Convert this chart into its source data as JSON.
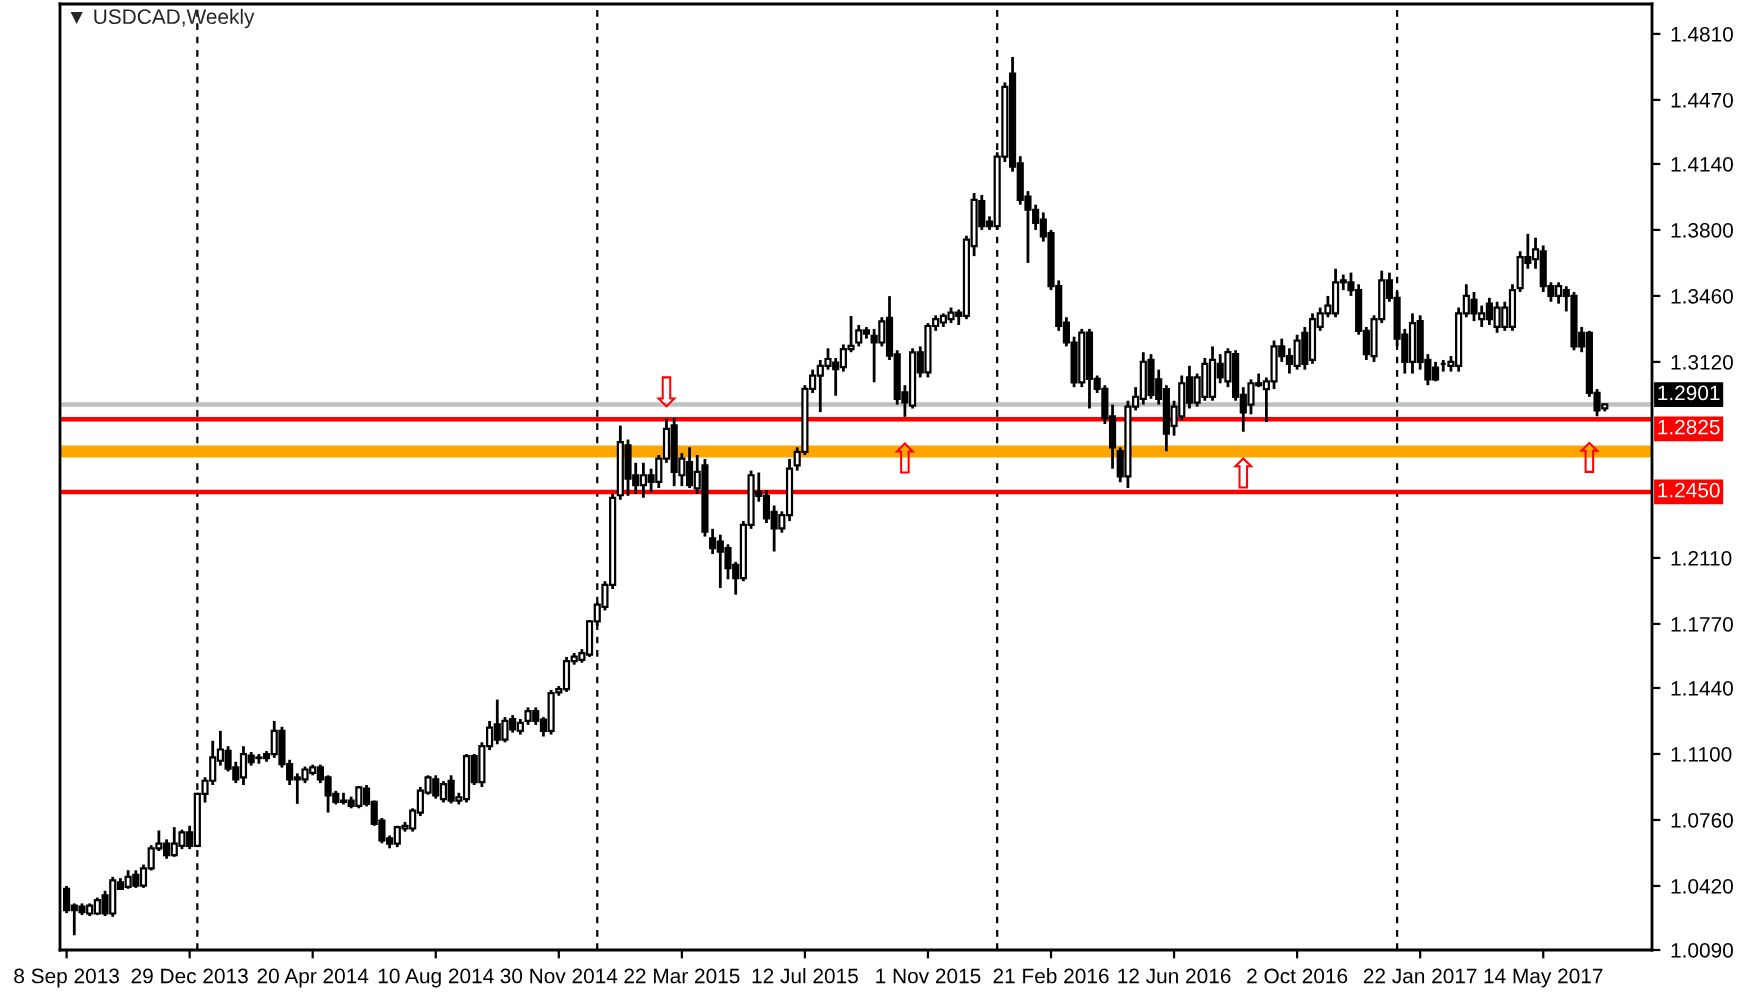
{
  "chart_data": {
    "type": "candlestick",
    "title": "▼ USDCAD,Weekly",
    "x": [
      "2013-09-08",
      "2013-09-15",
      "2013-09-22",
      "2013-09-29",
      "2013-10-06",
      "2013-10-13",
      "2013-10-20",
      "2013-10-27",
      "2013-11-03",
      "2013-11-10",
      "2013-11-17",
      "2013-11-24",
      "2013-12-01",
      "2013-12-08",
      "2013-12-15",
      "2013-12-22",
      "2013-12-29",
      "2014-01-05",
      "2014-01-12",
      "2014-01-19",
      "2014-01-26",
      "2014-02-02",
      "2014-02-09",
      "2014-02-16",
      "2014-02-23",
      "2014-03-02",
      "2014-03-09",
      "2014-03-16",
      "2014-03-23",
      "2014-03-30",
      "2014-04-06",
      "2014-04-13",
      "2014-04-20",
      "2014-04-27",
      "2014-05-04",
      "2014-05-11",
      "2014-05-18",
      "2014-05-25",
      "2014-06-01",
      "2014-06-08",
      "2014-06-15",
      "2014-06-22",
      "2014-06-29",
      "2014-07-06",
      "2014-07-13",
      "2014-07-20",
      "2014-07-27",
      "2014-08-03",
      "2014-08-10",
      "2014-08-17",
      "2014-08-24",
      "2014-08-31",
      "2014-09-07",
      "2014-09-14",
      "2014-09-21",
      "2014-09-28",
      "2014-10-05",
      "2014-10-12",
      "2014-10-19",
      "2014-10-26",
      "2014-11-02",
      "2014-11-09",
      "2014-11-16",
      "2014-11-23",
      "2014-11-30",
      "2014-12-07",
      "2014-12-14",
      "2014-12-21",
      "2014-12-28",
      "2015-01-04",
      "2015-01-11",
      "2015-01-18",
      "2015-01-25",
      "2015-02-01",
      "2015-02-08",
      "2015-02-15",
      "2015-02-22",
      "2015-03-01",
      "2015-03-08",
      "2015-03-15",
      "2015-03-22",
      "2015-03-29",
      "2015-04-05",
      "2015-04-12",
      "2015-04-19",
      "2015-04-26",
      "2015-05-03",
      "2015-05-10",
      "2015-05-17",
      "2015-05-24",
      "2015-05-31",
      "2015-06-07",
      "2015-06-14",
      "2015-06-21",
      "2015-06-28",
      "2015-07-05",
      "2015-07-12",
      "2015-07-19",
      "2015-07-26",
      "2015-08-02",
      "2015-08-09",
      "2015-08-16",
      "2015-08-23",
      "2015-08-30",
      "2015-09-06",
      "2015-09-13",
      "2015-09-20",
      "2015-09-27",
      "2015-10-04",
      "2015-10-11",
      "2015-10-18",
      "2015-10-25",
      "2015-11-01",
      "2015-11-08",
      "2015-11-15",
      "2015-11-22",
      "2015-11-29",
      "2015-12-06",
      "2015-12-13",
      "2015-12-20",
      "2015-12-27",
      "2016-01-03",
      "2016-01-10",
      "2016-01-17",
      "2016-01-24",
      "2016-01-31",
      "2016-02-07",
      "2016-02-14",
      "2016-02-21",
      "2016-02-28",
      "2016-03-06",
      "2016-03-13",
      "2016-03-20",
      "2016-03-27",
      "2016-04-03",
      "2016-04-10",
      "2016-04-17",
      "2016-04-24",
      "2016-05-01",
      "2016-05-08",
      "2016-05-15",
      "2016-05-22",
      "2016-05-29",
      "2016-06-05",
      "2016-06-12",
      "2016-06-19",
      "2016-06-26",
      "2016-07-03",
      "2016-07-10",
      "2016-07-17",
      "2016-07-24",
      "2016-07-31",
      "2016-08-07",
      "2016-08-14",
      "2016-08-21",
      "2016-08-28",
      "2016-09-04",
      "2016-09-11",
      "2016-09-18",
      "2016-09-25",
      "2016-10-02",
      "2016-10-09",
      "2016-10-16",
      "2016-10-23",
      "2016-10-30",
      "2016-11-06",
      "2016-11-13",
      "2016-11-20",
      "2016-11-27",
      "2016-12-04",
      "2016-12-11",
      "2016-12-18",
      "2016-12-25",
      "2017-01-01",
      "2017-01-08",
      "2017-01-15",
      "2017-01-22",
      "2017-01-29",
      "2017-02-05",
      "2017-02-12",
      "2017-02-19",
      "2017-02-26",
      "2017-03-05",
      "2017-03-12",
      "2017-03-19",
      "2017-03-26",
      "2017-04-02",
      "2017-04-09",
      "2017-04-16",
      "2017-04-23",
      "2017-04-30",
      "2017-05-07",
      "2017-05-14",
      "2017-05-21",
      "2017-05-28",
      "2017-06-04",
      "2017-06-11",
      "2017-06-18",
      "2017-06-25",
      "2017-07-02",
      "2017-07-09"
    ],
    "ohlc": [
      [
        1.0405,
        1.042,
        1.028,
        1.0295
      ],
      [
        1.0319,
        1.033,
        1.0166,
        1.0295
      ],
      [
        1.0313,
        1.033,
        1.027,
        1.0285
      ],
      [
        1.0278,
        1.033,
        1.0265,
        1.0319
      ],
      [
        1.0278,
        1.036,
        1.027,
        1.0347
      ],
      [
        1.0371,
        1.0395,
        1.0265,
        1.0278
      ],
      [
        1.0278,
        1.0467,
        1.0261,
        1.0449
      ],
      [
        1.0439,
        1.046,
        1.04,
        1.0405
      ],
      [
        1.0415,
        1.0501,
        1.0405,
        1.0467
      ],
      [
        1.0477,
        1.05,
        1.041,
        1.0422
      ],
      [
        1.0422,
        1.053,
        1.041,
        1.0511
      ],
      [
        1.0511,
        1.063,
        1.05,
        1.0614
      ],
      [
        1.0614,
        1.0706,
        1.06,
        1.0638
      ],
      [
        1.0638,
        1.066,
        1.056,
        1.0579
      ],
      [
        1.0579,
        1.0723,
        1.057,
        1.0638
      ],
      [
        1.0627,
        1.071,
        1.061,
        1.0696
      ],
      [
        1.0696,
        1.073,
        1.061,
        1.0627
      ],
      [
        1.0627,
        1.09,
        1.062,
        1.0894
      ],
      [
        1.0894,
        1.098,
        1.085,
        1.0962
      ],
      [
        1.0962,
        1.1168,
        1.094,
        1.1082
      ],
      [
        1.1065,
        1.1219,
        1.104,
        1.1123
      ],
      [
        1.1116,
        1.114,
        1.101,
        1.1024
      ],
      [
        1.1031,
        1.106,
        1.095,
        1.0969
      ],
      [
        1.0979,
        1.114,
        1.094,
        1.1099
      ],
      [
        1.1092,
        1.111,
        1.104,
        1.1058
      ],
      [
        1.1082,
        1.11,
        1.105,
        1.1079
      ],
      [
        1.1099,
        1.1115,
        1.106,
        1.1079
      ],
      [
        1.1099,
        1.127,
        1.108,
        1.1219
      ],
      [
        1.1219,
        1.124,
        1.103,
        1.1048
      ],
      [
        1.1048,
        1.107,
        1.094,
        1.0969
      ],
      [
        1.0979,
        1.1,
        1.0843,
        1.0969
      ],
      [
        1.0969,
        1.1035,
        1.095,
        1.102
      ],
      [
        1.1003,
        1.1045,
        1.099,
        1.1031
      ],
      [
        1.1031,
        1.1045,
        1.095,
        1.0969
      ],
      [
        1.0979,
        1.099,
        1.0798,
        1.0887
      ],
      [
        1.0894,
        1.091,
        1.084,
        1.0853
      ],
      [
        1.086,
        1.09,
        1.084,
        1.0853
      ],
      [
        1.086,
        1.088,
        1.082,
        1.0832
      ],
      [
        1.0832,
        1.0935,
        1.082,
        1.0928
      ],
      [
        1.0921,
        1.094,
        1.083,
        1.0843
      ],
      [
        1.0853,
        1.086,
        1.073,
        1.074
      ],
      [
        1.0757,
        1.077,
        1.064,
        1.0655
      ],
      [
        1.0665,
        1.068,
        1.0614,
        1.0638
      ],
      [
        1.0638,
        1.073,
        1.062,
        1.0723
      ],
      [
        1.0716,
        1.075,
        1.07,
        1.073
      ],
      [
        1.0716,
        1.082,
        1.07,
        1.0808
      ],
      [
        1.0798,
        1.093,
        1.078,
        1.0911
      ],
      [
        1.0901,
        1.099,
        1.089,
        1.0979
      ],
      [
        1.0969,
        1.099,
        1.087,
        1.0887
      ],
      [
        1.0867,
        1.096,
        1.085,
        1.0945
      ],
      [
        1.0962,
        1.099,
        1.0845,
        1.086
      ],
      [
        1.086,
        1.09,
        1.084,
        1.0877
      ],
      [
        1.0867,
        1.11,
        1.085,
        1.1089
      ],
      [
        1.1089,
        1.11,
        1.094,
        1.0955
      ],
      [
        1.0955,
        1.116,
        1.093,
        1.114
      ],
      [
        1.114,
        1.127,
        1.112,
        1.1236
      ],
      [
        1.1253,
        1.138,
        1.115,
        1.1174
      ],
      [
        1.1174,
        1.129,
        1.116,
        1.127
      ],
      [
        1.128,
        1.13,
        1.121,
        1.1226
      ],
      [
        1.1219,
        1.128,
        1.12,
        1.126
      ],
      [
        1.127,
        1.134,
        1.125,
        1.1321
      ],
      [
        1.1321,
        1.134,
        1.125,
        1.127
      ],
      [
        1.1277,
        1.129,
        1.119,
        1.1219
      ],
      [
        1.1219,
        1.143,
        1.12,
        1.1414
      ],
      [
        1.1417,
        1.145,
        1.14,
        1.1434
      ],
      [
        1.1434,
        1.16,
        1.142,
        1.1578
      ],
      [
        1.1578,
        1.162,
        1.156,
        1.1602
      ],
      [
        1.1585,
        1.164,
        1.157,
        1.1619
      ],
      [
        1.1612,
        1.179,
        1.16,
        1.1783
      ],
      [
        1.1783,
        1.188,
        1.176,
        1.1869
      ],
      [
        1.1858,
        1.199,
        1.184,
        1.1971
      ],
      [
        1.1971,
        1.244,
        1.195,
        1.242
      ],
      [
        1.2433,
        1.2792,
        1.241,
        1.2707
      ],
      [
        1.269,
        1.272,
        1.243,
        1.2519
      ],
      [
        1.2536,
        1.26,
        1.244,
        1.2485
      ],
      [
        1.2485,
        1.26,
        1.242,
        1.2536
      ],
      [
        1.2536,
        1.257,
        1.245,
        1.2502
      ],
      [
        1.2502,
        1.264,
        1.247,
        1.2622
      ],
      [
        1.2622,
        1.2827,
        1.26,
        1.2775
      ],
      [
        1.2793,
        1.283,
        1.248,
        1.2553
      ],
      [
        1.2536,
        1.265,
        1.248,
        1.2622
      ],
      [
        1.2604,
        1.268,
        1.247,
        1.2485
      ],
      [
        1.2468,
        1.264,
        1.244,
        1.2553
      ],
      [
        1.2587,
        1.262,
        1.222,
        1.2245
      ],
      [
        1.2211,
        1.226,
        1.213,
        1.216
      ],
      [
        1.2194,
        1.223,
        1.1955,
        1.2143
      ],
      [
        1.216,
        1.218,
        1.2,
        1.2057
      ],
      [
        1.2074,
        1.209,
        1.1921,
        1.2006
      ],
      [
        1.2006,
        1.23,
        1.199,
        1.228
      ],
      [
        1.228,
        1.256,
        1.226,
        1.2536
      ],
      [
        1.2451,
        1.255,
        1.24,
        1.243
      ],
      [
        1.243,
        1.246,
        1.229,
        1.2314
      ],
      [
        1.2348,
        1.238,
        1.2143,
        1.2262
      ],
      [
        1.2262,
        1.235,
        1.224,
        1.2331
      ],
      [
        1.2331,
        1.262,
        1.23,
        1.257
      ],
      [
        1.2587,
        1.268,
        1.256,
        1.2656
      ],
      [
        1.2656,
        1.3,
        1.264,
        1.2981
      ],
      [
        1.2981,
        1.308,
        1.296,
        1.3049
      ],
      [
        1.3049,
        1.313,
        1.2861,
        1.31
      ],
      [
        1.31,
        1.319,
        1.308,
        1.3135
      ],
      [
        1.3117,
        1.314,
        1.2946,
        1.3083
      ],
      [
        1.3093,
        1.321,
        1.307,
        1.3186
      ],
      [
        1.3186,
        1.3357,
        1.317,
        1.3203
      ],
      [
        1.322,
        1.331,
        1.32,
        1.3282
      ],
      [
        1.3282,
        1.33,
        1.324,
        1.3265
      ],
      [
        1.3254,
        1.329,
        1.3015,
        1.322
      ],
      [
        1.322,
        1.335,
        1.32,
        1.3329
      ],
      [
        1.3347,
        1.3459,
        1.313,
        1.3152
      ],
      [
        1.3159,
        1.318,
        1.29,
        1.2929
      ],
      [
        1.2963,
        1.3,
        1.2837,
        1.2912
      ],
      [
        1.2895,
        1.319,
        1.288,
        1.3169
      ],
      [
        1.3169,
        1.32,
        1.304,
        1.3066
      ],
      [
        1.3066,
        1.332,
        1.304,
        1.3305
      ],
      [
        1.3305,
        1.336,
        1.328,
        1.334
      ],
      [
        1.3323,
        1.337,
        1.33,
        1.3357
      ],
      [
        1.334,
        1.34,
        1.332,
        1.3374
      ],
      [
        1.3374,
        1.339,
        1.331,
        1.3357
      ],
      [
        1.3357,
        1.377,
        1.334,
        1.375
      ],
      [
        1.3716,
        1.399,
        1.3665,
        1.3955
      ],
      [
        1.3948,
        1.398,
        1.38,
        1.3819
      ],
      [
        1.3843,
        1.387,
        1.38,
        1.3819
      ],
      [
        1.3819,
        1.42,
        1.38,
        1.4178
      ],
      [
        1.4178,
        1.456,
        1.415,
        1.4537
      ],
      [
        1.4605,
        1.4691,
        1.41,
        1.4126
      ],
      [
        1.4143,
        1.418,
        1.393,
        1.3955
      ],
      [
        1.3972,
        1.4,
        1.363,
        1.3904
      ],
      [
        1.3904,
        1.393,
        1.38,
        1.3836
      ],
      [
        1.3853,
        1.389,
        1.374,
        1.3767
      ],
      [
        1.3784,
        1.38,
        1.349,
        1.3511
      ],
      [
        1.3511,
        1.354,
        1.328,
        1.3305
      ],
      [
        1.3323,
        1.335,
        1.32,
        1.322
      ],
      [
        1.322,
        1.325,
        1.299,
        1.3015
      ],
      [
        1.3015,
        1.329,
        1.299,
        1.3271
      ],
      [
        1.3271,
        1.329,
        1.288,
        1.3032
      ],
      [
        1.3032,
        1.305,
        1.296,
        1.2981
      ],
      [
        1.2981,
        1.3,
        1.28,
        1.283
      ],
      [
        1.284,
        1.29,
        1.257,
        1.268
      ],
      [
        1.266,
        1.268,
        1.25,
        1.253
      ],
      [
        1.253,
        1.292,
        1.247,
        1.289
      ],
      [
        1.289,
        1.299,
        1.287,
        1.294
      ],
      [
        1.293,
        1.317,
        1.29,
        1.312
      ],
      [
        1.313,
        1.316,
        1.293,
        1.295
      ],
      [
        1.303,
        1.308,
        1.29,
        1.293
      ],
      [
        1.298,
        1.3,
        1.266,
        1.275
      ],
      [
        1.279,
        1.292,
        1.274,
        1.289
      ],
      [
        1.284,
        1.305,
        1.282,
        1.301
      ],
      [
        1.304,
        1.31,
        1.288,
        1.291
      ],
      [
        1.291,
        1.306,
        1.289,
        1.304
      ],
      [
        1.294,
        1.314,
        1.292,
        1.311
      ],
      [
        1.294,
        1.32,
        1.292,
        1.313
      ],
      [
        1.311,
        1.316,
        1.301,
        1.304
      ],
      [
        1.302,
        1.319,
        1.299,
        1.317
      ],
      [
        1.316,
        1.318,
        1.292,
        1.294
      ],
      [
        1.295,
        1.299,
        1.276,
        1.286
      ],
      [
        1.29,
        1.303,
        1.285,
        1.301
      ],
      [
        1.301,
        1.306,
        1.299,
        1.3
      ],
      [
        1.298,
        1.304,
        1.281,
        1.302
      ],
      [
        1.302,
        1.323,
        1.298,
        1.32
      ],
      [
        1.32,
        1.324,
        1.312,
        1.315
      ],
      [
        1.315,
        1.319,
        1.306,
        1.311
      ],
      [
        1.31,
        1.326,
        1.308,
        1.323
      ],
      [
        1.327,
        1.33,
        1.308,
        1.311
      ],
      [
        1.313,
        1.337,
        1.311,
        1.334
      ],
      [
        1.33,
        1.34,
        1.328,
        1.337
      ],
      [
        1.337,
        1.346,
        1.335,
        1.341
      ],
      [
        1.337,
        1.36,
        1.335,
        1.353
      ],
      [
        1.353,
        1.357,
        1.349,
        1.354
      ],
      [
        1.353,
        1.358,
        1.346,
        1.349
      ],
      [
        1.349,
        1.352,
        1.326,
        1.328
      ],
      [
        1.328,
        1.33,
        1.313,
        1.316
      ],
      [
        1.315,
        1.336,
        1.312,
        1.334
      ],
      [
        1.334,
        1.359,
        1.332,
        1.354
      ],
      [
        1.354,
        1.358,
        1.343,
        1.345
      ],
      [
        1.345,
        1.348,
        1.32,
        1.324
      ],
      [
        1.326,
        1.329,
        1.306,
        1.312
      ],
      [
        1.312,
        1.337,
        1.306,
        1.332
      ],
      [
        1.333,
        1.336,
        1.308,
        1.312
      ],
      [
        1.313,
        1.316,
        1.3,
        1.303
      ],
      [
        1.309,
        1.312,
        1.302,
        1.303
      ],
      [
        1.311,
        1.313,
        1.307,
        1.311
      ],
      [
        1.31,
        1.315,
        1.307,
        1.312
      ],
      [
        1.31,
        1.34,
        1.307,
        1.337
      ],
      [
        1.337,
        1.352,
        1.335,
        1.346
      ],
      [
        1.344,
        1.348,
        1.333,
        1.337
      ],
      [
        1.334,
        1.341,
        1.33,
        1.337
      ],
      [
        1.342,
        1.345,
        1.331,
        1.334
      ],
      [
        1.33,
        1.343,
        1.327,
        1.34
      ],
      [
        1.33,
        1.343,
        1.328,
        1.34
      ],
      [
        1.33,
        1.352,
        1.328,
        1.349
      ],
      [
        1.35,
        1.369,
        1.348,
        1.366
      ],
      [
        1.366,
        1.378,
        1.36,
        1.363
      ],
      [
        1.365,
        1.376,
        1.36,
        1.37
      ],
      [
        1.369,
        1.372,
        1.348,
        1.351
      ],
      [
        1.351,
        1.353,
        1.343,
        1.346
      ],
      [
        1.346,
        1.353,
        1.342,
        1.351
      ],
      [
        1.349,
        1.351,
        1.338,
        1.346
      ],
      [
        1.346,
        1.348,
        1.318,
        1.32
      ],
      [
        1.327,
        1.33,
        1.317,
        1.32
      ],
      [
        1.327,
        1.328,
        1.294,
        1.296
      ],
      [
        1.296,
        1.298,
        1.284,
        1.287
      ],
      [
        1.288,
        1.2905,
        1.2865,
        1.2901
      ]
    ],
    "xlim": [
      "2013-09-02",
      "2017-08-21"
    ],
    "xticks": [
      {
        "value": "2013-09-08",
        "label": "8 Sep 2013"
      },
      {
        "value": "2013-12-29",
        "label": "29 Dec 2013"
      },
      {
        "value": "2014-04-20",
        "label": "20 Apr 2014"
      },
      {
        "value": "2014-08-10",
        "label": "10 Aug 2014"
      },
      {
        "value": "2014-11-30",
        "label": "30 Nov 2014"
      },
      {
        "value": "2015-03-22",
        "label": "22 Mar 2015"
      },
      {
        "value": "2015-07-12",
        "label": "12 Jul 2015"
      },
      {
        "value": "2015-11-01",
        "label": "1 Nov 2015"
      },
      {
        "value": "2016-02-21",
        "label": "21 Feb 2016"
      },
      {
        "value": "2016-06-12",
        "label": "12 Jun 2016"
      },
      {
        "value": "2016-10-02",
        "label": "2 Oct 2016"
      },
      {
        "value": "2017-01-22",
        "label": "22 Jan 2017"
      },
      {
        "value": "2017-05-14",
        "label": "14 May 2017"
      }
    ],
    "ylim": [
      1.009,
      1.4964
    ],
    "yticks": [
      {
        "value": 1.481,
        "label": "1.4810"
      },
      {
        "value": 1.447,
        "label": "1.4470"
      },
      {
        "value": 1.414,
        "label": "1.4140"
      },
      {
        "value": 1.38,
        "label": "1.3800"
      },
      {
        "value": 1.346,
        "label": "1.3460"
      },
      {
        "value": 1.312,
        "label": "1.3120"
      },
      {
        "value": 1.211,
        "label": "1.2110"
      },
      {
        "value": 1.177,
        "label": "1.1770"
      },
      {
        "value": 1.144,
        "label": "1.1440"
      },
      {
        "value": 1.11,
        "label": "1.1100"
      },
      {
        "value": 1.076,
        "label": "1.0760"
      },
      {
        "value": 1.042,
        "label": "1.0420"
      },
      {
        "value": 1.009,
        "label": "1.0090"
      }
    ],
    "ref_lines": [
      {
        "axis": "y",
        "value": 1.2901,
        "label": "1.2901",
        "color": "#c0c0c0",
        "line_style": "solid"
      },
      {
        "axis": "y",
        "value": 1.2825,
        "label": "1.2825",
        "color": "#ff0000",
        "line_style": "solid"
      },
      {
        "axis": "y",
        "value": 1.245,
        "label": "1.2450",
        "color": "#ff0000",
        "line_style": "solid"
      },
      {
        "axis": "x",
        "value": "2014-01-05",
        "color": "#000000",
        "line_style": "dashed"
      },
      {
        "axis": "x",
        "value": "2015-01-04",
        "color": "#000000",
        "line_style": "dashed"
      },
      {
        "axis": "x",
        "value": "2016-01-03",
        "color": "#000000",
        "line_style": "dashed"
      },
      {
        "axis": "x",
        "value": "2017-01-01",
        "color": "#000000",
        "line_style": "dashed"
      }
    ],
    "bands": [
      {
        "axis": "y",
        "from": 1.2628,
        "to": 1.2689,
        "color": "#ffa500"
      }
    ],
    "annotations": [
      {
        "text": "⇩",
        "x": "2015-03-08",
        "y": 1.283
      },
      {
        "text": "⇧",
        "x": "2015-10-11",
        "y": 1.2837
      },
      {
        "text": "⇧",
        "x": "2016-08-14",
        "y": 1.276
      },
      {
        "text": "⇧",
        "x": "2017-06-25",
        "y": 1.284
      }
    ]
  }
}
